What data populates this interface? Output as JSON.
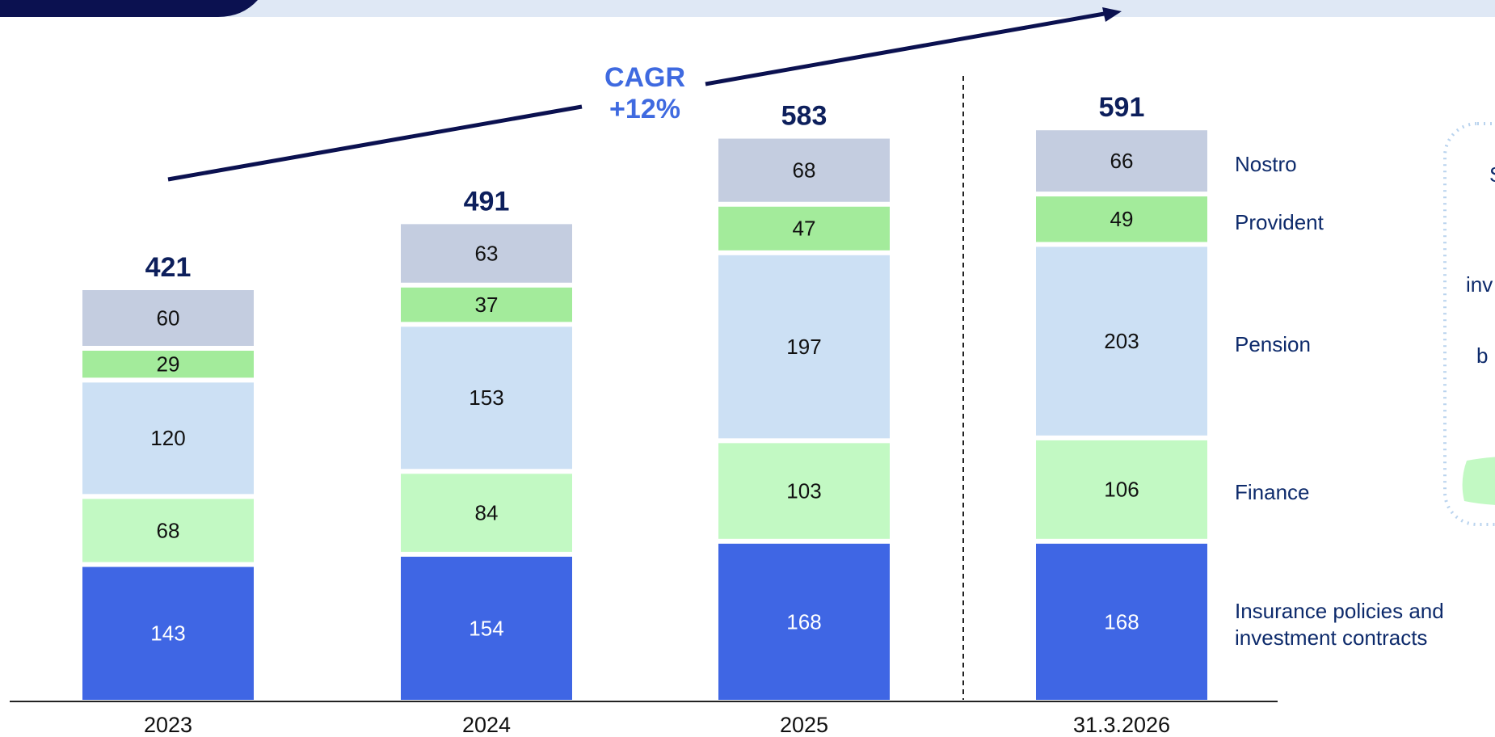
{
  "chart_data": {
    "type": "stacked_bar",
    "categories": [
      "2023",
      "2024",
      "2025",
      "31.3.2026"
    ],
    "series": [
      {
        "name": "Insurance policies and investment contracts",
        "color": "#3f66e4",
        "values": [
          143,
          154,
          168,
          168
        ]
      },
      {
        "name": "Finance",
        "color": "#c2f9c3",
        "values": [
          68,
          84,
          103,
          106
        ]
      },
      {
        "name": "Pension",
        "color": "#cce0f4",
        "values": [
          120,
          153,
          197,
          203
        ]
      },
      {
        "name": "Provident",
        "color": "#a3eb9b",
        "values": [
          29,
          37,
          47,
          49
        ]
      },
      {
        "name": "Nostro",
        "color": "#c4cde0",
        "values": [
          60,
          63,
          68,
          66
        ]
      }
    ],
    "totals": [
      421,
      491,
      583,
      591
    ],
    "annotation": [
      "CAGR",
      "+12%"
    ],
    "side_note_fragments": [
      "S",
      "inv",
      "b"
    ]
  }
}
